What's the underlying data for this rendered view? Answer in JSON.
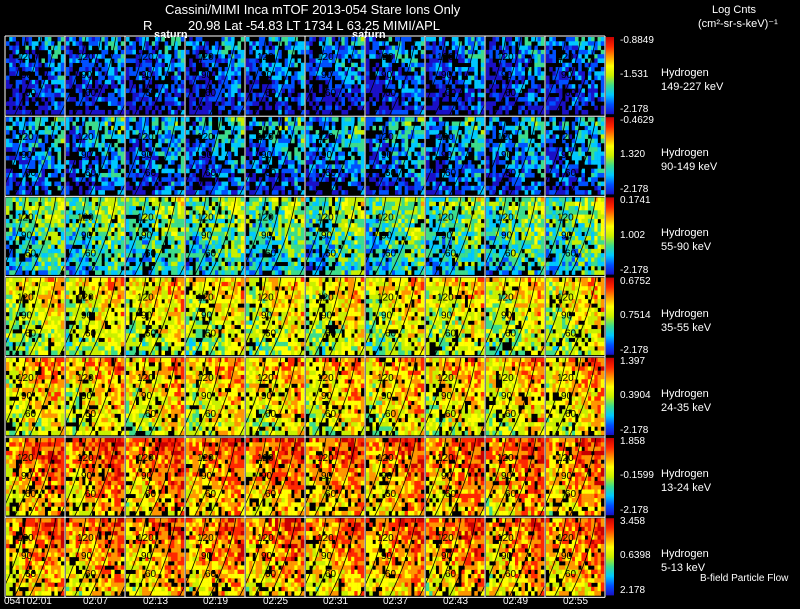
{
  "header": {
    "line1": "Cassini/MIMI Inca mTOF  2013-054    Stare    Ions Only",
    "r_label": "R",
    "line2": "20.98  Lat -54.83  LT 1734  L          63.25   MIMI/APL",
    "saturn_label": "saturn",
    "units_title": "Log Cnts",
    "units": "(cm²-sr-s-keV)⁻¹"
  },
  "footer": {
    "bfield": "B-field  Particle Flow"
  },
  "colors": {
    "background": "#000000",
    "palette": [
      "#1a10c8",
      "#0050ff",
      "#00c8ff",
      "#3cdc8c",
      "#c8f000",
      "#ffff00",
      "#ff9600",
      "#ff2800",
      "#c80000"
    ]
  },
  "chart_data": {
    "type": "heatmap",
    "title": "Cassini/MIMI Inca mTOF  2013-054    Stare    Ions Only",
    "time_labels": [
      "054T02:01",
      "02:07",
      "02:13",
      "02:19",
      "02:25",
      "02:31",
      "02:37",
      "02:43",
      "02:49",
      "02:55"
    ],
    "rows": [
      {
        "species": "Hydrogen",
        "energy": "149-227 keV",
        "cbar_max": "-0.8849",
        "cbar_mid": "-1.531",
        "cbar_min": "-2.178",
        "level": 0.15
      },
      {
        "species": "Hydrogen",
        "energy": "90-149 keV",
        "cbar_max": "-0.4629",
        "cbar_mid": "1.320",
        "cbar_min": "-2.178",
        "level": 0.22
      },
      {
        "species": "Hydrogen",
        "energy": "55-90 keV",
        "cbar_max": "0.1741",
        "cbar_mid": "1.002",
        "cbar_min": "-2.178",
        "level": 0.38
      },
      {
        "species": "Hydrogen",
        "energy": "35-55 keV",
        "cbar_max": "0.6752",
        "cbar_mid": "0.7514",
        "cbar_min": "-2.178",
        "level": 0.56
      },
      {
        "species": "Hydrogen",
        "energy": "24-35 keV",
        "cbar_max": "1.397",
        "cbar_mid": "0.3904",
        "cbar_min": "-2.178",
        "level": 0.62
      },
      {
        "species": "Hydrogen",
        "energy": "13-24 keV",
        "cbar_max": "1.858",
        "cbar_mid": "-0.1599",
        "cbar_min": "-2.178",
        "level": 0.72
      },
      {
        "species": "Hydrogen",
        "energy": "5-13 keV",
        "cbar_max": "3.458",
        "cbar_mid": "0.6398",
        "cbar_min": "2.178",
        "level": 0.7
      }
    ],
    "contour_labels": [
      "120",
      "90",
      "60"
    ]
  }
}
